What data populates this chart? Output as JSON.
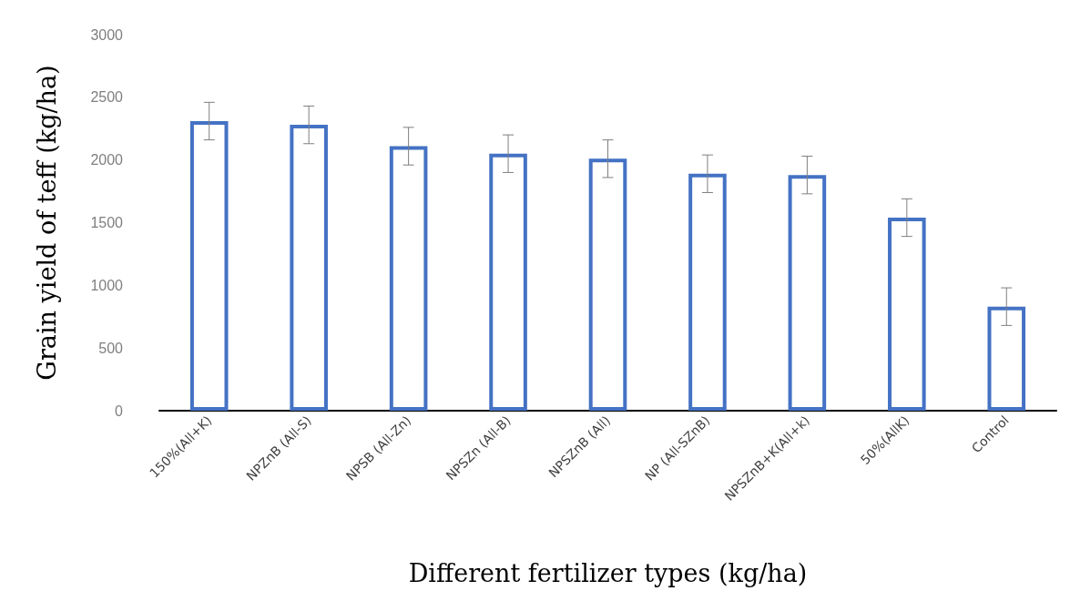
{
  "chart_data": {
    "type": "bar",
    "xlabel": "Different fertilizer types (kg/ha)",
    "ylabel": "Grain yield of teff (kg/ha)",
    "categories": [
      "150%(All+K)",
      "NPZnB (All-S)",
      "NPSB (All-Zn)",
      "NPSZn (All-B)",
      "NPSZnB (All)",
      "NP (All-SZnB)",
      "NPSZnB+K(All+k)",
      "50%(AllK)",
      "Control"
    ],
    "values": [
      2310,
      2280,
      2110,
      2050,
      2010,
      1890,
      1880,
      1540,
      830
    ],
    "errors": [
      150,
      150,
      150,
      150,
      150,
      150,
      150,
      150,
      150
    ],
    "color": "#4472c4",
    "ylim": [
      0,
      3000
    ],
    "yticks": [
      0,
      500,
      1000,
      1500,
      2000,
      2500,
      3000
    ],
    "grid": false
  }
}
